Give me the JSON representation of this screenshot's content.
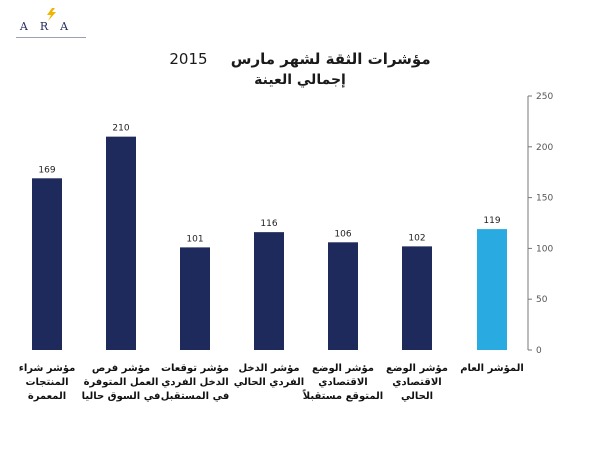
{
  "logo": {
    "text": "ARA",
    "icon": "lightning-bolt-icon",
    "accent": "#f0b400"
  },
  "title": {
    "main": "مؤشرات الثقة لشهر مارس",
    "year": "2015",
    "subtitle": "إجمالي العينة"
  },
  "colors": {
    "bar": "#1f2a5c",
    "highlight": "#29abe2",
    "axis": "#777777"
  },
  "chart_data": {
    "type": "bar",
    "title": "مؤشرات الثقة لشهر مارس 2015",
    "subtitle": "إجمالي العينة",
    "categories": [
      "مؤشر شراء المنتجات المعمرة",
      "مؤشر فرص العمل المتوفرة في السوق حاليا",
      "مؤشر توقعات الدخل الفردي في المستقبل",
      "مؤشر الدخل الفردي الحالي",
      "مؤشر الوضع الاقتصادي المتوقع مستقبلاً",
      "مؤشر الوضع الاقتصادي الحالي",
      "المؤشر العام"
    ],
    "values": [
      169,
      210,
      101,
      116,
      106,
      102,
      119
    ],
    "highlight_index": 6,
    "ylim": [
      0,
      250
    ],
    "yticks": [
      0,
      50,
      100,
      150,
      200,
      250
    ],
    "y_axis_side": "right",
    "grid": false,
    "legend": "none"
  }
}
